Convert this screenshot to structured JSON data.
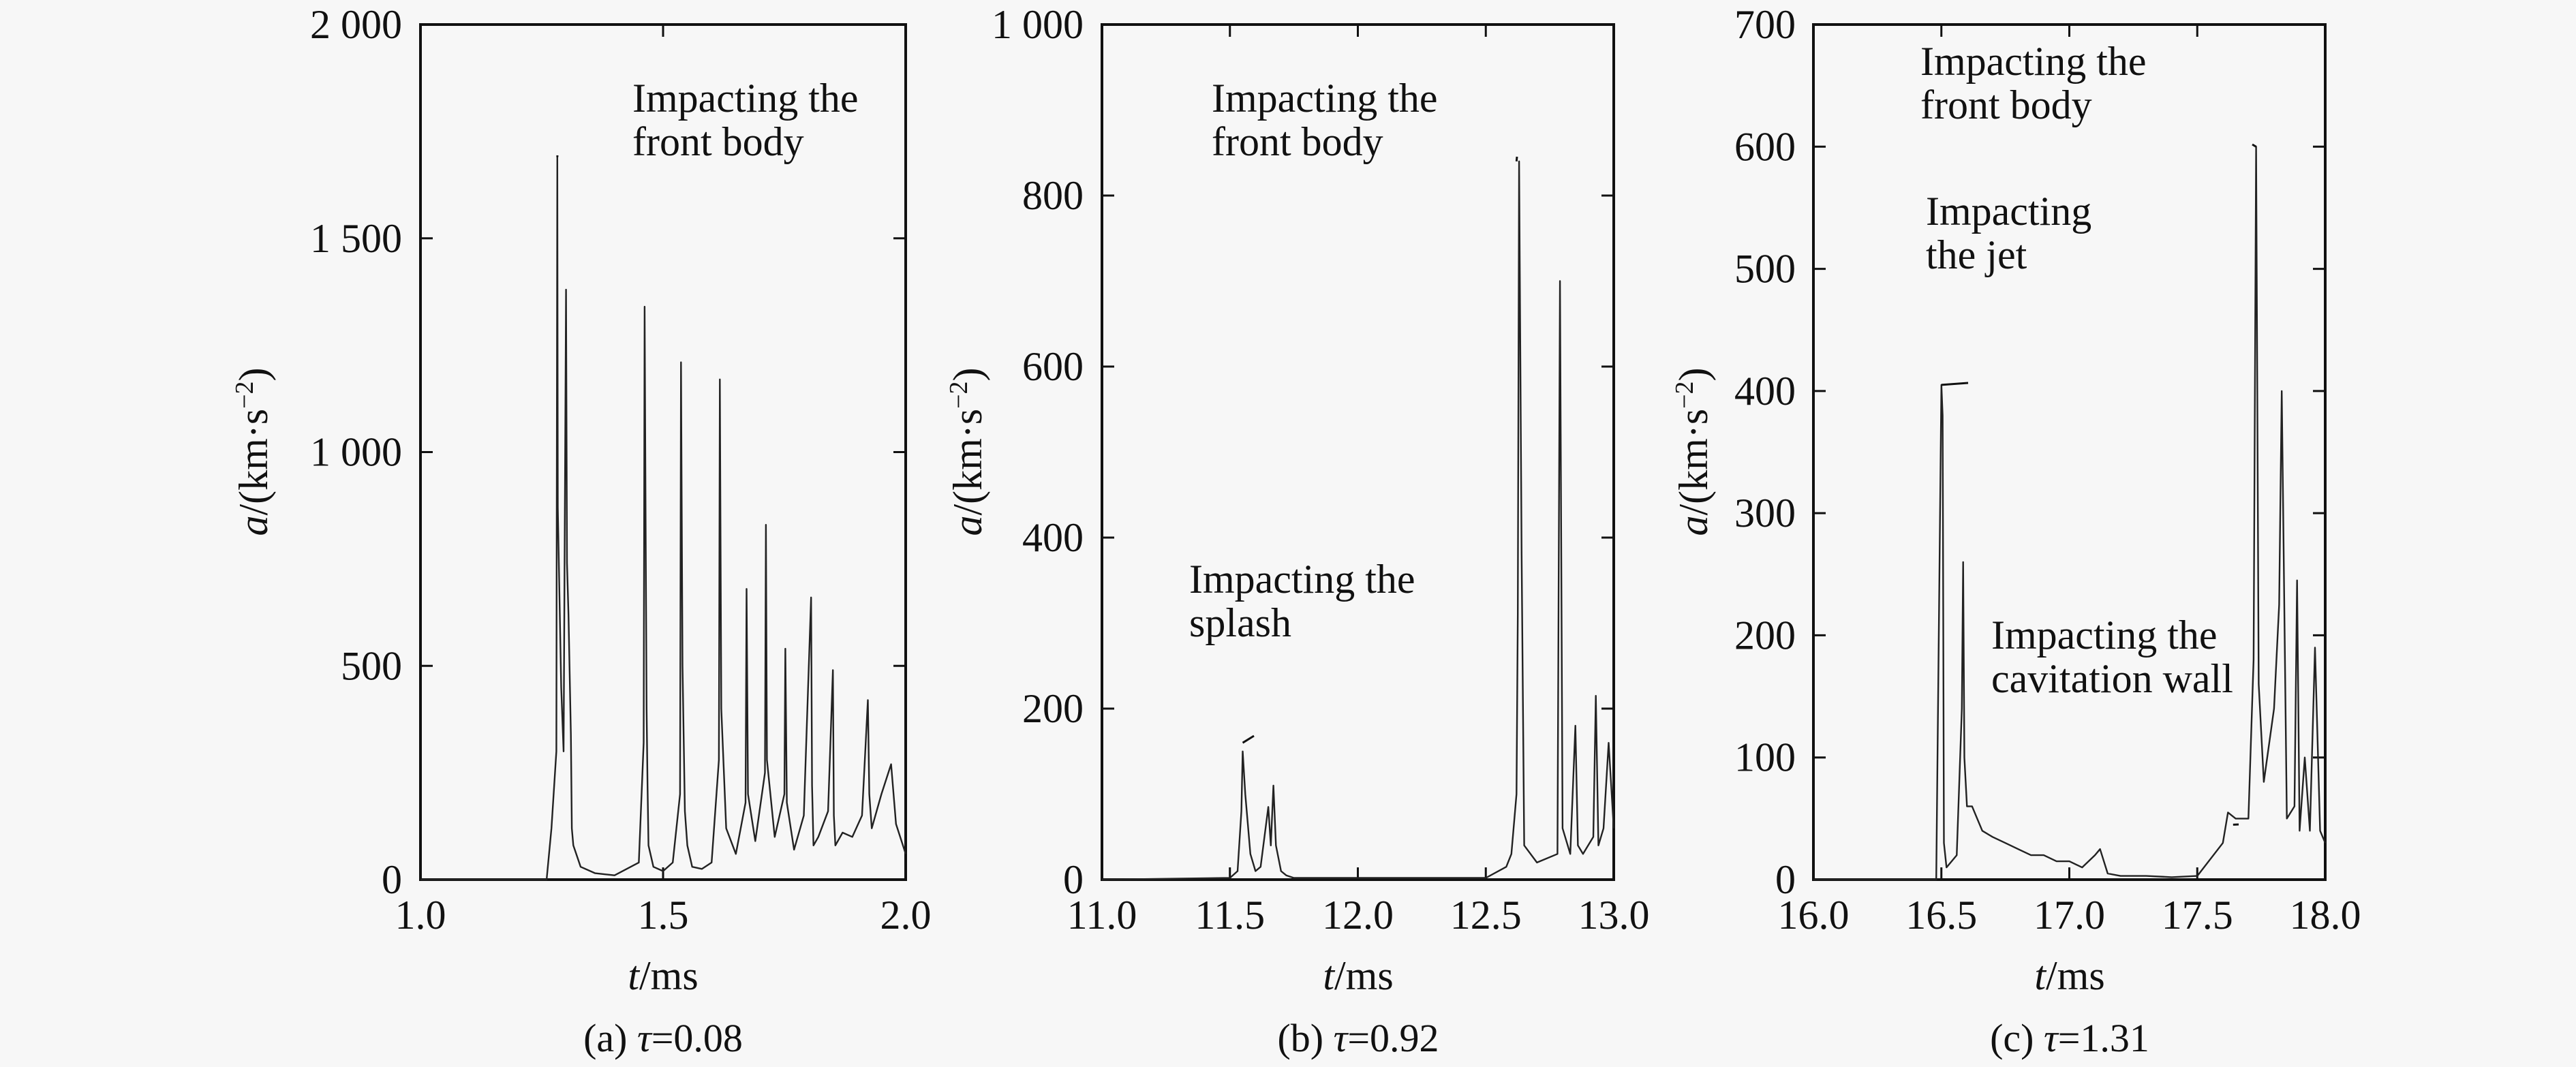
{
  "chart_data": [
    {
      "type": "line",
      "caption": "(a) τ=0.08",
      "caption_parts": {
        "prefix": "(a) ",
        "symbol": "τ",
        "suffix": "=0.08"
      },
      "xlabel": {
        "var": "t",
        "unit": "/ms"
      },
      "ylabel": {
        "var": "a",
        "unit": "/(km·s",
        "sup": "−2",
        "close": ")"
      },
      "xlim": [
        1.0,
        2.0
      ],
      "ylim": [
        0,
        2000
      ],
      "xticks": [
        1.0,
        1.5,
        2.0
      ],
      "xtick_labels": [
        "1.0",
        "1.5",
        "2.0"
      ],
      "yticks": [
        0,
        500,
        1000,
        1500,
        2000
      ],
      "ytick_labels": [
        "0",
        "500",
        "1 000",
        "1 500",
        "2 000"
      ],
      "series": [
        {
          "x": [
            1.0,
            1.26,
            1.27,
            1.28,
            1.282,
            1.283,
            1.29,
            1.295,
            1.3,
            1.302,
            1.305,
            1.31,
            1.312,
            1.315,
            1.33,
            1.36,
            1.4,
            1.45,
            1.46,
            1.462,
            1.464,
            1.466,
            1.468,
            1.47,
            1.48,
            1.5,
            1.52,
            1.535,
            1.537,
            1.54,
            1.545,
            1.55,
            1.56,
            1.58,
            1.6,
            1.615,
            1.617,
            1.62,
            1.63,
            1.65,
            1.67,
            1.672,
            1.675,
            1.69,
            1.71,
            1.712,
            1.714,
            1.73,
            1.75,
            1.752,
            1.755,
            1.77,
            1.79,
            1.805,
            1.807,
            1.81,
            1.82,
            1.84,
            1.85,
            1.852,
            1.855,
            1.87,
            1.89,
            1.91,
            1.922,
            1.925,
            1.93,
            1.95,
            1.97,
            1.98,
            2.0
          ],
          "y": [
            0,
            0,
            120,
            300,
            1690,
            870,
            450,
            300,
            1380,
            740,
            620,
            340,
            120,
            80,
            30,
            15,
            10,
            40,
            320,
            1340,
            830,
            400,
            220,
            80,
            30,
            20,
            40,
            200,
            1210,
            500,
            160,
            80,
            30,
            25,
            40,
            280,
            1170,
            400,
            120,
            60,
            180,
            680,
            200,
            90,
            250,
            830,
            280,
            100,
            200,
            540,
            180,
            70,
            150,
            660,
            220,
            80,
            100,
            160,
            490,
            150,
            80,
            110,
            100,
            150,
            420,
            200,
            120,
            200,
            270,
            130,
            60
          ]
        }
      ],
      "annotations": [
        {
          "lines": [
            "Impacting the",
            "front body"
          ],
          "point": [
            1.282,
            1690
          ]
        }
      ]
    },
    {
      "type": "line",
      "caption": "(b) τ=0.92",
      "caption_parts": {
        "prefix": "(b) ",
        "symbol": "τ",
        "suffix": "=0.92"
      },
      "xlabel": {
        "var": "t",
        "unit": "/ms"
      },
      "ylabel": {
        "var": "a",
        "unit": "/(km·s",
        "sup": "−2",
        "close": ")"
      },
      "xlim": [
        11.0,
        13.0
      ],
      "ylim": [
        0,
        1000
      ],
      "xticks": [
        11.0,
        11.5,
        12.0,
        12.5,
        13.0
      ],
      "xtick_labels": [
        "11.0",
        "11.5",
        "12.0",
        "12.5",
        "13.0"
      ],
      "yticks": [
        0,
        200,
        400,
        600,
        800,
        1000
      ],
      "ytick_labels": [
        "0",
        "200",
        "400",
        "600",
        "800",
        "1 000"
      ],
      "series": [
        {
          "x": [
            11.0,
            11.5,
            11.53,
            11.545,
            11.55,
            11.56,
            11.58,
            11.6,
            11.62,
            11.65,
            11.66,
            11.67,
            11.68,
            11.7,
            11.72,
            11.75,
            12.0,
            12.5,
            12.58,
            12.6,
            12.62,
            12.625,
            12.63,
            12.64,
            12.65,
            12.7,
            12.78,
            12.79,
            12.8,
            12.83,
            12.85,
            12.86,
            12.88,
            12.92,
            12.93,
            12.94,
            12.96,
            12.98,
            13.0
          ],
          "y": [
            0,
            2,
            10,
            80,
            150,
            100,
            30,
            10,
            15,
            85,
            40,
            110,
            40,
            10,
            5,
            2,
            2,
            2,
            15,
            30,
            100,
            310,
            840,
            380,
            40,
            20,
            30,
            700,
            60,
            30,
            180,
            40,
            30,
            50,
            215,
            40,
            60,
            160,
            60
          ]
        }
      ],
      "annotations": [
        {
          "lines": [
            "Impacting the",
            "front body"
          ],
          "point": [
            12.62,
            840
          ]
        },
        {
          "lines": [
            "Impacting the",
            "splash"
          ],
          "point": [
            11.55,
            160
          ]
        }
      ]
    },
    {
      "type": "line",
      "caption": "(c) τ=1.31",
      "caption_parts": {
        "prefix": "(c) ",
        "symbol": "τ",
        "suffix": "=1.31"
      },
      "xlabel": {
        "var": "t",
        "unit": "/ms"
      },
      "ylabel": {
        "var": "a",
        "unit": "/(km·s",
        "sup": "−2",
        "close": ")"
      },
      "xlim": [
        16.0,
        18.0
      ],
      "ylim": [
        0,
        700
      ],
      "xticks": [
        16.0,
        16.5,
        17.0,
        17.5,
        18.0
      ],
      "xtick_labels": [
        "16.0",
        "16.5",
        "17.0",
        "17.5",
        "18.0"
      ],
      "yticks": [
        0,
        100,
        200,
        300,
        400,
        500,
        600,
        700
      ],
      "ytick_labels": [
        "0",
        "100",
        "200",
        "300",
        "400",
        "500",
        "600",
        "700"
      ],
      "series": [
        {
          "x": [
            16.0,
            16.48,
            16.5,
            16.505,
            16.51,
            16.52,
            16.56,
            16.58,
            16.585,
            16.59,
            16.6,
            16.62,
            16.64,
            16.66,
            16.7,
            16.75,
            16.8,
            16.85,
            16.9,
            16.95,
            17.0,
            17.05,
            17.1,
            17.12,
            17.15,
            17.2,
            17.3,
            17.4,
            17.5,
            17.6,
            17.62,
            17.65,
            17.7,
            17.72,
            17.73,
            17.74,
            17.76,
            17.8,
            17.82,
            17.83,
            17.85,
            17.88,
            17.89,
            17.9,
            17.92,
            17.94,
            17.96,
            17.98,
            18.0
          ],
          "y": [
            0,
            0,
            405,
            380,
            30,
            10,
            20,
            140,
            260,
            100,
            60,
            60,
            50,
            40,
            35,
            30,
            25,
            20,
            20,
            15,
            15,
            10,
            20,
            25,
            5,
            3,
            3,
            2,
            3,
            30,
            55,
            50,
            50,
            180,
            600,
            160,
            80,
            140,
            225,
            400,
            50,
            60,
            245,
            40,
            100,
            40,
            190,
            40,
            30
          ]
        }
      ],
      "annotations": [
        {
          "lines": [
            "Impacting the",
            "front body"
          ],
          "point": [
            17.73,
            600
          ]
        },
        {
          "lines": [
            "Impacting",
            "the jet"
          ],
          "point": [
            16.5,
            405
          ]
        },
        {
          "lines": [
            "Impacting the",
            "cavitation wall"
          ],
          "point": [
            17.64,
            45
          ]
        }
      ]
    }
  ]
}
